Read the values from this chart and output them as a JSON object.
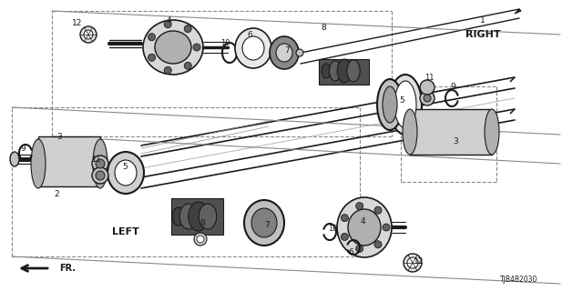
{
  "bg_color": "#ffffff",
  "line_color": "#1a1a1a",
  "part_number": "TJB4B2030",
  "right_label": "RIGHT",
  "left_label": "LEFT",
  "fr_label": "FR."
}
